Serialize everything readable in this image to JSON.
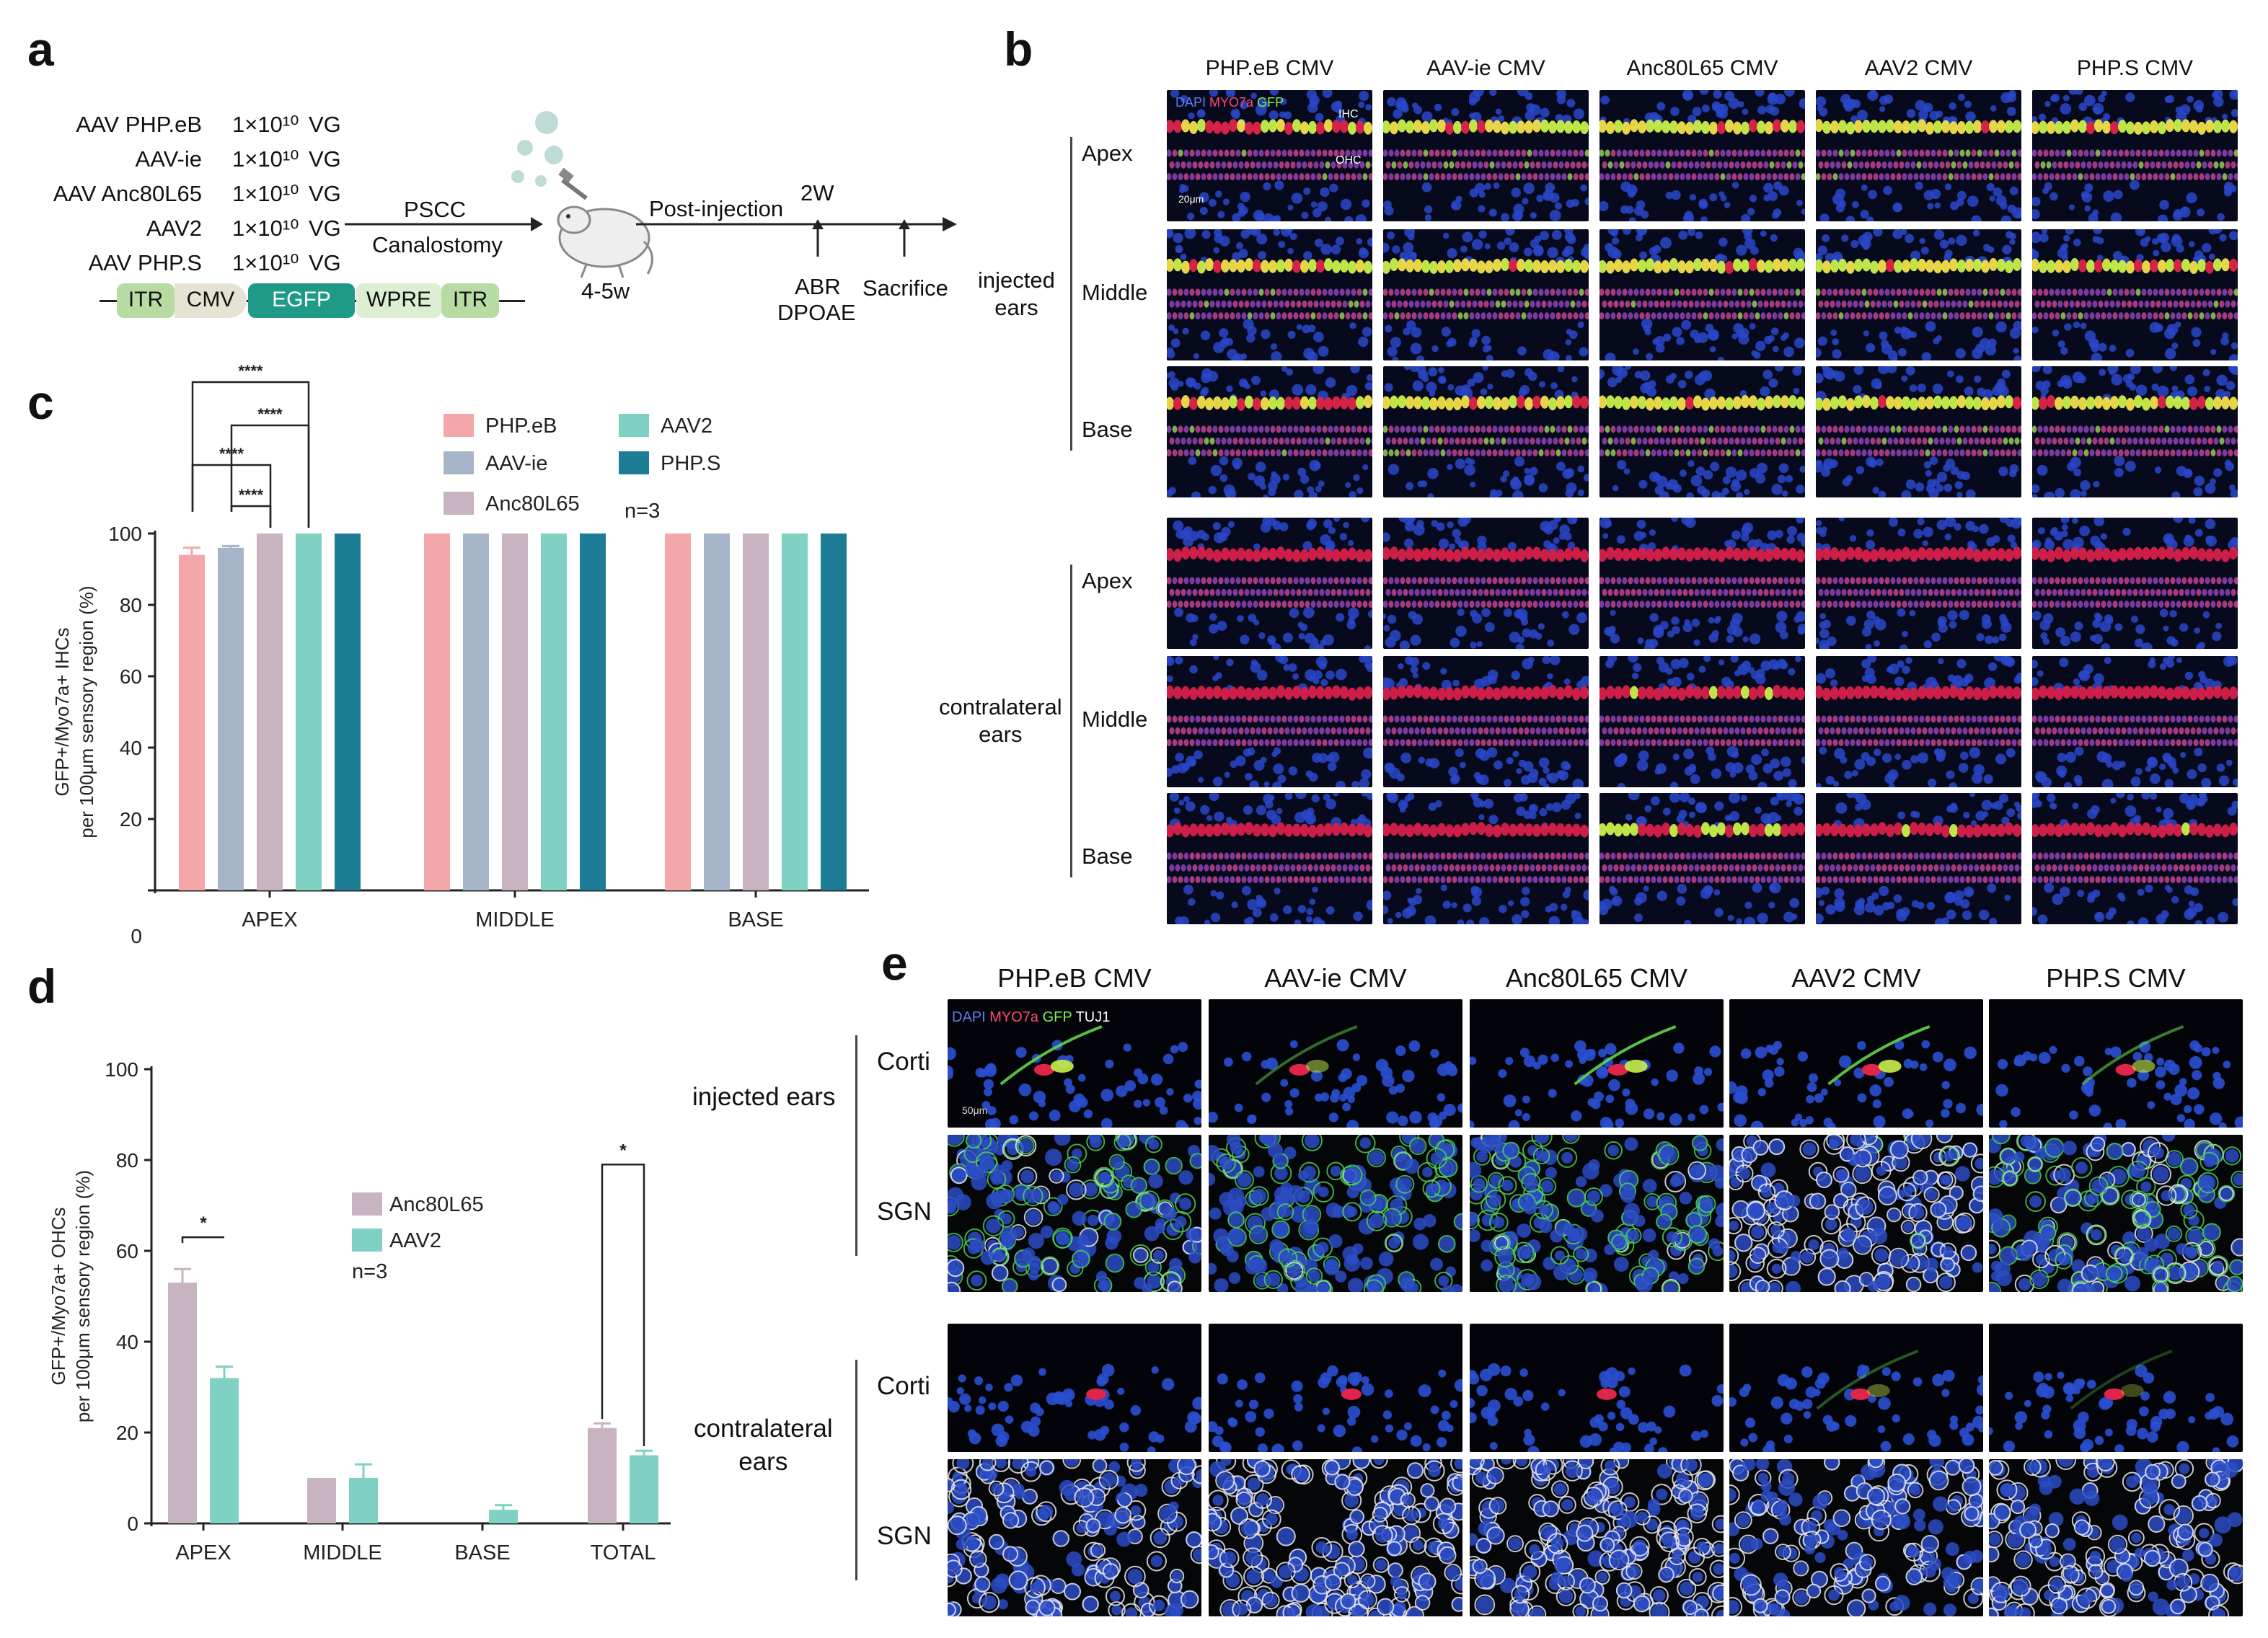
{
  "panels": {
    "a": "a",
    "b": "b",
    "c": "c",
    "d": "d",
    "e": "e"
  },
  "panel_a": {
    "vectors": [
      {
        "name": "AAV PHP.eB",
        "dose": "1×10¹⁰",
        "unit": "VG"
      },
      {
        "name": "AAV-ie",
        "dose": "1×10¹⁰",
        "unit": "VG"
      },
      {
        "name": "AAV Anc80L65",
        "dose": "1×10¹⁰",
        "unit": "VG"
      },
      {
        "name": "AAV2",
        "dose": "1×10¹⁰",
        "unit": "VG"
      },
      {
        "name": "AAV PHP.S",
        "dose": "1×10¹⁰",
        "unit": "VG"
      }
    ],
    "construct": [
      "ITR",
      "CMV",
      "EGFP",
      "WPRE",
      "ITR"
    ],
    "route_top": "PSCC",
    "route_bottom": "Canalostomy",
    "age": "4-5w",
    "post_injection": "Post-injection",
    "timepoint": "2W",
    "test": "ABR",
    "test2": "DPOAE",
    "end": "Sacrifice"
  },
  "panel_b": {
    "columns": [
      "PHP.eB CMV",
      "AAV-ie CMV",
      "Anc80L65 CMV",
      "AAV2 CMV",
      "PHP.S CMV"
    ],
    "groups": [
      {
        "label_line1": "injected",
        "label_line2": "ears",
        "rows": [
          "Apex",
          "Middle",
          "Base"
        ]
      },
      {
        "label_line1": "contralateral",
        "label_line2": "ears",
        "rows": [
          "Apex",
          "Middle",
          "Base"
        ]
      }
    ],
    "stain_dapi": "DAPI",
    "stain_myo": "MYO7a",
    "stain_gfp": "GFP",
    "ihc_label": "IHC",
    "ohc_label": "OHC",
    "scale": "20μm",
    "colors": {
      "dapi": "#2a4fd0",
      "myo": "#e0244a",
      "gfp": "#7df04a"
    }
  },
  "panel_e": {
    "columns": [
      "PHP.eB CMV",
      "AAV-ie CMV",
      "Anc80L65 CMV",
      "AAV2 CMV",
      "PHP.S CMV"
    ],
    "groups": [
      {
        "label_line1": "injected ears",
        "label_line2": "",
        "rows": [
          "Corti",
          "SGN"
        ]
      },
      {
        "label_line1": "contralateral",
        "label_line2": "ears",
        "rows": [
          "Corti",
          "SGN"
        ]
      }
    ],
    "stain_dapi": "DAPI",
    "stain_myo": "MYO7a",
    "stain_gfp": "GFP",
    "stain_tuj": "TUJ1",
    "scale": "50μm"
  },
  "chart_data": [
    {
      "type": "bar",
      "panel": "c",
      "ylabel_line1": "GFP+/Myo7a+ IHCs",
      "ylabel_line2": "per 100μm sensory region (%)",
      "categories": [
        "APEX",
        "MIDDLE",
        "BASE"
      ],
      "yticks": [
        0,
        20,
        40,
        60,
        80,
        100
      ],
      "ylim": [
        0,
        100
      ],
      "legend_n": "n=3",
      "series": [
        {
          "name": "PHP.eB",
          "color": "#f4a7a9",
          "values": [
            94,
            100,
            100
          ],
          "errors": [
            2,
            0,
            0
          ]
        },
        {
          "name": "AAV-ie",
          "color": "#a6b6c8",
          "values": [
            96,
            100,
            100
          ],
          "errors": [
            0.5,
            0,
            0
          ]
        },
        {
          "name": "Anc80L65",
          "color": "#c8b4c0",
          "values": [
            100,
            100,
            100
          ],
          "errors": [
            0,
            0,
            0
          ]
        },
        {
          "name": "AAV2",
          "color": "#7fd1c4",
          "values": [
            100,
            100,
            100
          ],
          "errors": [
            0,
            0,
            0
          ]
        },
        {
          "name": "PHP.S",
          "color": "#1e7d96",
          "values": [
            100,
            100,
            100
          ],
          "errors": [
            0,
            0,
            0
          ]
        }
      ],
      "significance": [
        "****",
        "****",
        "****",
        "****"
      ]
    },
    {
      "type": "bar",
      "panel": "d",
      "ylabel_line1": "GFP+/Myo7a+ OHCs",
      "ylabel_line2": "per 100μm sensory region (%)",
      "categories": [
        "APEX",
        "MIDDLE",
        "BASE",
        "TOTAL"
      ],
      "yticks": [
        0,
        20,
        40,
        60,
        80,
        100
      ],
      "ylim": [
        0,
        100
      ],
      "legend_n": "n=3",
      "series": [
        {
          "name": "Anc80L65",
          "color": "#c8b4c0",
          "values": [
            53,
            10,
            0,
            21
          ],
          "errors": [
            3,
            0,
            0,
            1
          ]
        },
        {
          "name": "AAV2",
          "color": "#7fd1c4",
          "values": [
            32,
            10,
            3,
            15
          ],
          "errors": [
            2.5,
            3,
            1,
            1
          ]
        }
      ],
      "significance": [
        "*",
        "*"
      ]
    }
  ]
}
